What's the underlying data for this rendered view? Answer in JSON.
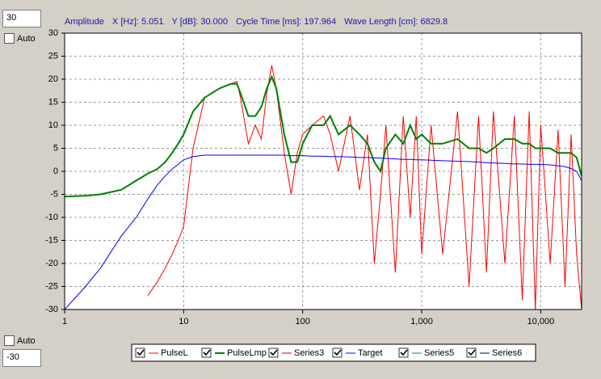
{
  "controls": {
    "top_value": "30",
    "top_auto": "Auto",
    "bottom_auto": "Auto",
    "bottom_value": "-30"
  },
  "readout": [
    "Amplitude",
    "X [Hz]: 5.051",
    "Y [dB]: 30.000",
    "Cycle Time [ms]: 197.964",
    "Wave Length [cm]: 6829.8"
  ],
  "chart_data": {
    "type": "line",
    "log_x": true,
    "grid": true,
    "x": [
      1,
      1.5,
      2,
      3,
      4,
      5,
      6,
      7,
      8,
      9,
      10,
      12,
      15,
      20,
      25,
      28,
      30,
      35,
      40,
      45,
      50,
      55,
      60,
      70,
      80,
      90,
      100,
      120,
      150,
      170,
      200,
      250,
      300,
      350,
      400,
      450,
      500,
      600,
      700,
      800,
      900,
      1000,
      1200,
      1500,
      2000,
      2500,
      3000,
      3500,
      4000,
      5000,
      6000,
      7000,
      8000,
      9000,
      10000,
      12000,
      14000,
      16000,
      18000,
      20000,
      22050
    ],
    "series": [
      {
        "name": "PulseL",
        "color": "#ff0000",
        "width": 1,
        "values": [
          null,
          null,
          null,
          null,
          null,
          -27,
          -24,
          -21,
          -18,
          -15,
          -12,
          5,
          16,
          18,
          19,
          19.5,
          16,
          6,
          10,
          7,
          17,
          23,
          18,
          4,
          -5,
          4,
          8,
          10,
          12,
          8,
          0,
          12,
          -4,
          8,
          -20,
          -5,
          10,
          -22,
          12,
          -10,
          12,
          -18,
          10,
          -18,
          13,
          -25,
          12,
          -22,
          13,
          -20,
          12,
          -28,
          13,
          -30,
          10,
          -20,
          9,
          -25,
          8,
          -18,
          -30
        ]
      },
      {
        "name": "PulseLmp",
        "color": "#008000",
        "width": 2,
        "values": [
          -5.5,
          -5.3,
          -5,
          -4,
          -2,
          -0.5,
          0.5,
          2,
          4,
          6,
          8,
          13,
          16,
          18,
          19,
          19,
          17,
          12,
          12,
          14,
          18,
          20.5,
          18,
          8,
          2,
          2,
          6,
          10,
          10,
          12,
          8,
          10,
          8,
          6,
          2,
          0,
          5,
          8,
          6,
          10,
          7,
          8,
          6,
          6,
          7,
          5,
          5,
          4,
          5,
          7,
          7,
          6,
          6,
          5,
          5,
          5,
          4,
          4,
          4,
          3,
          -1
        ]
      },
      {
        "name": "Series3",
        "color": "#c00000"
      },
      {
        "name": "Target",
        "color": "#0000ff",
        "width": 1,
        "values": [
          -30,
          -25,
          -21,
          -14,
          -10,
          -6,
          -3,
          -1,
          0.5,
          1.5,
          2.5,
          3.2,
          3.5,
          3.5,
          3.5,
          3.5,
          3.5,
          3.5,
          3.5,
          3.5,
          3.5,
          3.5,
          3.5,
          3.5,
          3.4,
          3.4,
          3.4,
          3.3,
          3.3,
          3.2,
          3.2,
          3.1,
          3,
          3,
          2.9,
          2.9,
          2.8,
          2.7,
          2.6,
          2.6,
          2.5,
          2.5,
          2.4,
          2.3,
          2.2,
          2.1,
          2,
          1.9,
          1.8,
          1.7,
          1.6,
          1.6,
          1.5,
          1.5,
          1.5,
          1.4,
          1.2,
          1,
          0.6,
          0,
          -2
        ]
      },
      {
        "name": "Series5",
        "color": "#008080"
      },
      {
        "name": "Series6",
        "color": "#000080"
      }
    ],
    "xlim": [
      1,
      22050
    ],
    "ylim": [
      -30,
      30
    ],
    "xticks": [
      1,
      10,
      100,
      {
        "value": 1000,
        "label": "1,000"
      },
      {
        "value": 10000,
        "label": "10,000"
      }
    ],
    "yticks": [
      -30,
      -25,
      -20,
      -15,
      -10,
      -5,
      0,
      5,
      10,
      15,
      20,
      25,
      30
    ]
  }
}
